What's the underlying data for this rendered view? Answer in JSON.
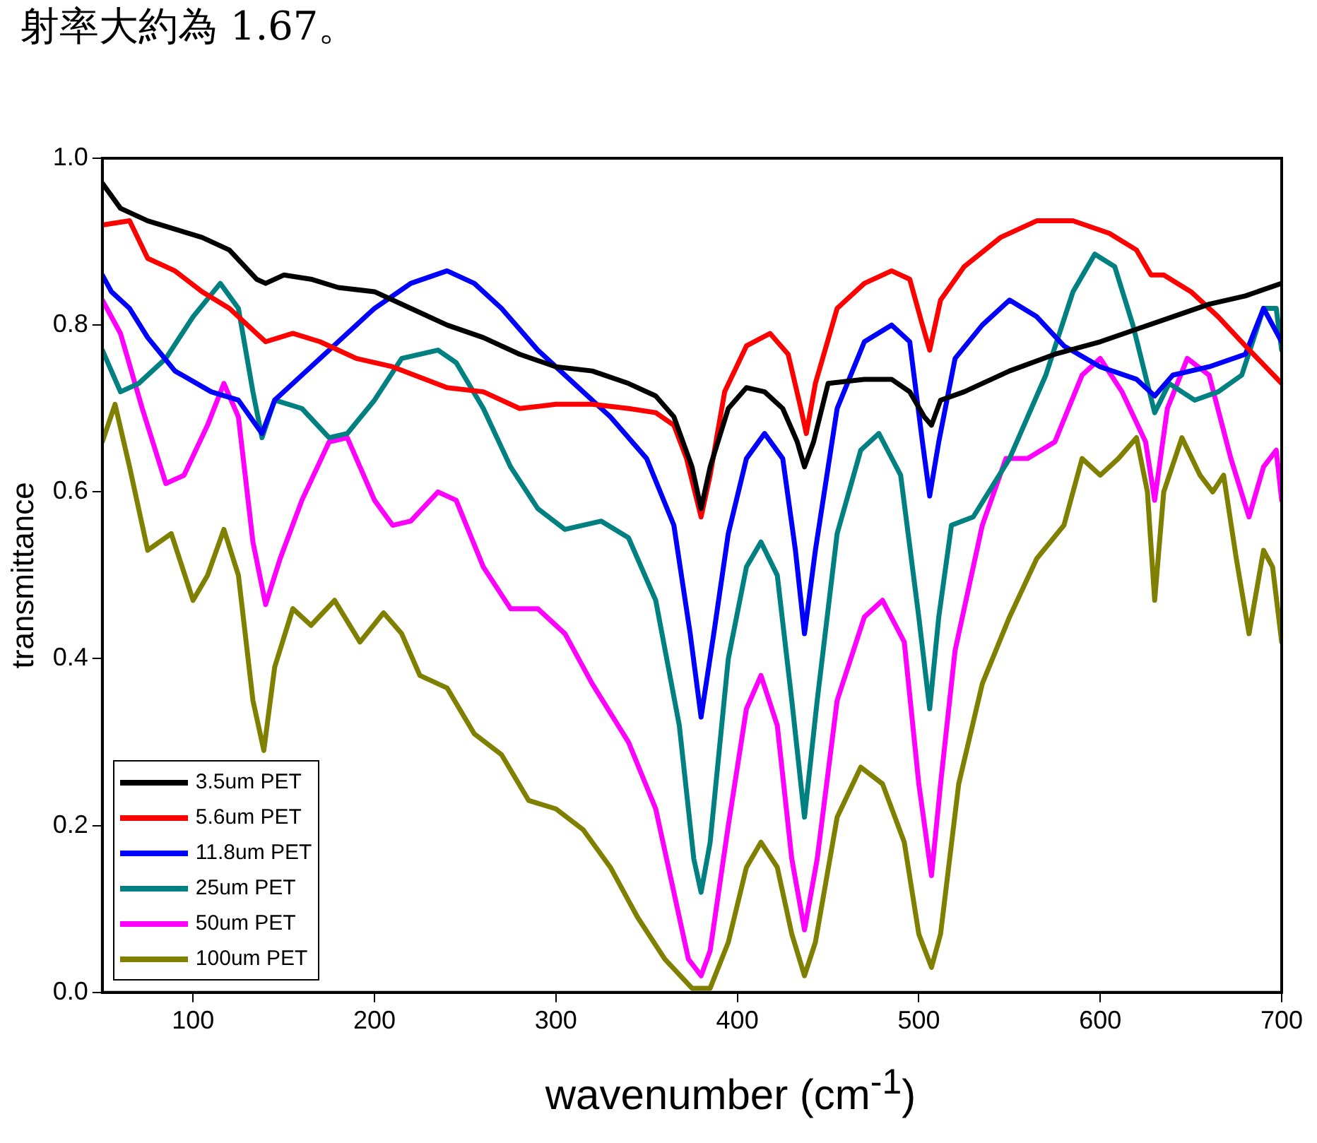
{
  "chart_data": {
    "type": "line",
    "xlabel": "wavenumber (cm$^{-1}$)",
    "ylabel": "transmittance",
    "annotations": [
      "射率大約為 1.67。"
    ],
    "xlim": [
      50,
      700
    ],
    "xticks": [
      100,
      200,
      300,
      400,
      500,
      600,
      700
    ],
    "ylim": [
      0,
      1
    ],
    "yticks": [
      {
        "value": 0,
        "label": "0.0"
      },
      0.2,
      0.4,
      0.6,
      0.8,
      {
        "value": 1,
        "label": "1.0"
      }
    ],
    "grid": false,
    "legend": "bottom left",
    "marker": "none",
    "line_style": "solid",
    "x": [
      50,
      60,
      75,
      90,
      105,
      120,
      135,
      140,
      150,
      165,
      180,
      200,
      220,
      240,
      260,
      280,
      300,
      320,
      340,
      355,
      365,
      375,
      380,
      385,
      395,
      405,
      415,
      425,
      433,
      437,
      442,
      450,
      470,
      485,
      495,
      503,
      507,
      512,
      525,
      550,
      575,
      600,
      620,
      640,
      660,
      680,
      700
    ],
    "series": [
      {
        "name": "3.5um PET",
        "color": "#000000",
        "values": [
          0.97,
          0.94,
          0.925,
          0.915,
          0.905,
          0.89,
          0.855,
          0.85,
          0.86,
          0.855,
          0.845,
          0.84,
          0.82,
          0.8,
          0.785,
          0.765,
          0.75,
          0.745,
          0.73,
          0.715,
          0.69,
          0.63,
          0.58,
          0.63,
          0.7,
          0.725,
          0.72,
          0.7,
          0.66,
          0.63,
          0.66,
          0.73,
          0.735,
          0.735,
          0.72,
          0.69,
          0.68,
          0.71,
          0.72,
          0.745,
          0.765,
          0.78,
          0.795,
          0.81,
          0.825,
          0.835,
          0.85
        ]
      },
      {
        "name": "5.6um PET",
        "color": "#ff0000",
        "x": [
          50,
          65,
          75,
          90,
          105,
          120,
          135,
          140,
          155,
          170,
          190,
          210,
          240,
          260,
          280,
          300,
          320,
          340,
          355,
          365,
          372,
          380,
          385,
          393,
          405,
          418,
          428,
          435,
          438,
          443,
          455,
          470,
          485,
          495,
          502,
          506,
          512,
          525,
          545,
          565,
          585,
          605,
          620,
          628,
          635,
          650,
          665,
          680,
          700
        ],
        "values": [
          0.92,
          0.925,
          0.88,
          0.865,
          0.84,
          0.82,
          0.79,
          0.78,
          0.79,
          0.78,
          0.76,
          0.75,
          0.725,
          0.72,
          0.7,
          0.705,
          0.705,
          0.7,
          0.695,
          0.68,
          0.64,
          0.57,
          0.62,
          0.72,
          0.775,
          0.79,
          0.765,
          0.7,
          0.67,
          0.73,
          0.82,
          0.85,
          0.865,
          0.855,
          0.8,
          0.77,
          0.83,
          0.87,
          0.905,
          0.925,
          0.925,
          0.91,
          0.89,
          0.86,
          0.86,
          0.84,
          0.81,
          0.775,
          0.73
        ]
      },
      {
        "name": "11.8um PET",
        "color": "#0000ff",
        "x": [
          50,
          55,
          65,
          75,
          90,
          110,
          125,
          138,
          145,
          160,
          180,
          200,
          220,
          240,
          255,
          270,
          290,
          310,
          330,
          350,
          365,
          374,
          380,
          387,
          395,
          405,
          415,
          425,
          432,
          437,
          443,
          455,
          470,
          485,
          495,
          502,
          506,
          511,
          520,
          535,
          550,
          565,
          580,
          600,
          620,
          630,
          640,
          660,
          680,
          690,
          700
        ],
        "values": [
          0.86,
          0.84,
          0.82,
          0.785,
          0.745,
          0.72,
          0.71,
          0.67,
          0.71,
          0.74,
          0.78,
          0.82,
          0.85,
          0.865,
          0.85,
          0.82,
          0.77,
          0.73,
          0.69,
          0.64,
          0.56,
          0.43,
          0.33,
          0.43,
          0.55,
          0.64,
          0.67,
          0.64,
          0.53,
          0.43,
          0.53,
          0.7,
          0.78,
          0.8,
          0.78,
          0.66,
          0.595,
          0.66,
          0.76,
          0.8,
          0.83,
          0.81,
          0.775,
          0.75,
          0.735,
          0.715,
          0.74,
          0.75,
          0.765,
          0.82,
          0.78
        ]
      },
      {
        "name": "25um PET",
        "color": "#008080",
        "x": [
          50,
          60,
          70,
          85,
          100,
          115,
          125,
          133,
          138,
          145,
          160,
          175,
          185,
          200,
          215,
          235,
          245,
          260,
          275,
          290,
          305,
          325,
          340,
          355,
          368,
          376,
          380,
          385,
          395,
          405,
          413,
          422,
          430,
          437,
          444,
          455,
          468,
          478,
          490,
          500,
          506,
          511,
          518,
          530,
          550,
          570,
          585,
          597,
          608,
          618,
          626,
          630,
          638,
          652,
          665,
          678,
          690,
          697,
          700
        ],
        "values": [
          0.77,
          0.72,
          0.73,
          0.76,
          0.81,
          0.85,
          0.82,
          0.72,
          0.665,
          0.71,
          0.7,
          0.665,
          0.67,
          0.71,
          0.76,
          0.77,
          0.755,
          0.7,
          0.63,
          0.58,
          0.555,
          0.565,
          0.545,
          0.47,
          0.32,
          0.16,
          0.12,
          0.18,
          0.4,
          0.51,
          0.54,
          0.5,
          0.35,
          0.21,
          0.35,
          0.55,
          0.65,
          0.67,
          0.62,
          0.45,
          0.34,
          0.45,
          0.56,
          0.57,
          0.64,
          0.74,
          0.84,
          0.885,
          0.87,
          0.8,
          0.73,
          0.695,
          0.73,
          0.71,
          0.72,
          0.74,
          0.82,
          0.82,
          0.77
        ]
      },
      {
        "name": "50um PET",
        "color": "#ff00ff",
        "x": [
          50,
          60,
          72,
          85,
          95,
          108,
          117,
          125,
          133,
          140,
          148,
          160,
          175,
          185,
          200,
          210,
          220,
          235,
          245,
          260,
          275,
          290,
          305,
          320,
          340,
          355,
          365,
          373,
          380,
          385,
          395,
          405,
          413,
          422,
          430,
          437,
          444,
          455,
          470,
          480,
          492,
          500,
          507,
          512,
          520,
          535,
          548,
          560,
          575,
          590,
          600,
          612,
          625,
          630,
          637,
          648,
          660,
          672,
          682,
          690,
          697,
          700
        ],
        "values": [
          0.83,
          0.79,
          0.7,
          0.61,
          0.62,
          0.68,
          0.73,
          0.69,
          0.54,
          0.465,
          0.52,
          0.59,
          0.66,
          0.665,
          0.59,
          0.56,
          0.565,
          0.6,
          0.59,
          0.51,
          0.46,
          0.46,
          0.43,
          0.37,
          0.3,
          0.22,
          0.12,
          0.04,
          0.02,
          0.05,
          0.2,
          0.34,
          0.38,
          0.32,
          0.16,
          0.075,
          0.16,
          0.35,
          0.45,
          0.47,
          0.42,
          0.25,
          0.14,
          0.25,
          0.41,
          0.56,
          0.64,
          0.64,
          0.66,
          0.74,
          0.76,
          0.72,
          0.66,
          0.59,
          0.7,
          0.76,
          0.74,
          0.64,
          0.57,
          0.63,
          0.65,
          0.59
        ]
      },
      {
        "name": "100um PET",
        "color": "#808000",
        "x": [
          50,
          57,
          65,
          75,
          88,
          100,
          108,
          117,
          125,
          133,
          139,
          145,
          155,
          165,
          178,
          192,
          205,
          215,
          225,
          240,
          255,
          270,
          285,
          300,
          315,
          330,
          345,
          360,
          375,
          385,
          395,
          405,
          413,
          422,
          430,
          437,
          443,
          455,
          468,
          480,
          492,
          500,
          507,
          512,
          522,
          535,
          550,
          565,
          580,
          590,
          600,
          610,
          620,
          626,
          630,
          635,
          645,
          655,
          662,
          668,
          675,
          682,
          690,
          695,
          700
        ],
        "values": [
          0.66,
          0.705,
          0.63,
          0.53,
          0.55,
          0.47,
          0.5,
          0.555,
          0.5,
          0.35,
          0.29,
          0.39,
          0.46,
          0.44,
          0.47,
          0.42,
          0.455,
          0.43,
          0.38,
          0.365,
          0.31,
          0.285,
          0.23,
          0.22,
          0.195,
          0.15,
          0.09,
          0.04,
          0.005,
          0.005,
          0.06,
          0.15,
          0.18,
          0.15,
          0.07,
          0.02,
          0.06,
          0.21,
          0.27,
          0.25,
          0.18,
          0.07,
          0.03,
          0.07,
          0.25,
          0.37,
          0.45,
          0.52,
          0.56,
          0.64,
          0.62,
          0.64,
          0.665,
          0.6,
          0.47,
          0.6,
          0.665,
          0.62,
          0.6,
          0.62,
          0.52,
          0.43,
          0.53,
          0.51,
          0.42
        ]
      }
    ]
  }
}
